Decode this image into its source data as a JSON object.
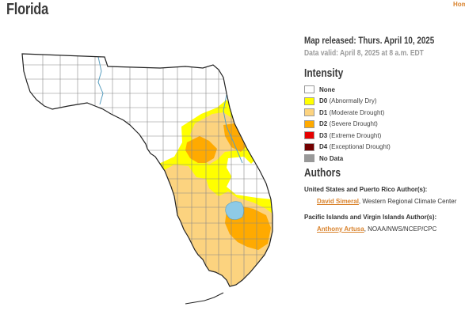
{
  "page": {
    "title": "Florida",
    "home_link": "Home"
  },
  "map_info": {
    "released": "Map released: Thurs. April 10, 2025",
    "valid": "Data valid: April 8, 2025 at 8 a.m. EDT"
  },
  "intensity": {
    "heading": "Intensity",
    "levels": [
      {
        "code": "None",
        "desc": "",
        "color": "#ffffff"
      },
      {
        "code": "D0",
        "desc": "(Abnormally Dry)",
        "color": "#ffff00"
      },
      {
        "code": "D1",
        "desc": "(Moderate Drought)",
        "color": "#fcd37f"
      },
      {
        "code": "D2",
        "desc": "(Severe Drought)",
        "color": "#ffaa00"
      },
      {
        "code": "D3",
        "desc": "(Extreme Drought)",
        "color": "#e60000"
      },
      {
        "code": "D4",
        "desc": "(Exceptional Drought)",
        "color": "#730000"
      },
      {
        "code": "No Data",
        "desc": "",
        "color": "#999999"
      }
    ]
  },
  "authors": {
    "heading": "Authors",
    "groups": [
      {
        "region": "United States and Puerto Rico Author(s):",
        "name": "David Simeral",
        "affiliation": ", Western Regional Climate Center"
      },
      {
        "region": "Pacific Islands and Virgin Islands Author(s):",
        "name": "Anthony Artusa",
        "affiliation": ", NOAA/NWS/NCEP/CPC"
      }
    ]
  },
  "map_colors": {
    "water": "#8ecae6",
    "county_lines": "#888888",
    "outline": "#222222"
  }
}
